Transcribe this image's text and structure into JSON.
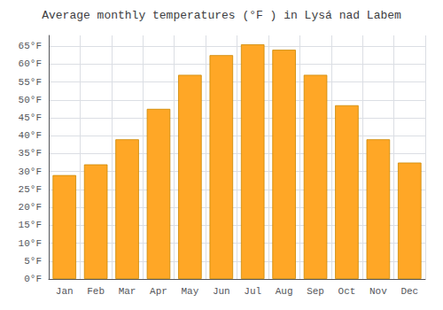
{
  "chart_data": {
    "type": "bar",
    "title": "Average monthly temperatures (°F ) in Lysá nad Labem",
    "categories": [
      "Jan",
      "Feb",
      "Mar",
      "Apr",
      "May",
      "Jun",
      "Jul",
      "Aug",
      "Sep",
      "Oct",
      "Nov",
      "Dec"
    ],
    "values": [
      29,
      32,
      39,
      47.5,
      57,
      62.5,
      65.5,
      64,
      57,
      48.5,
      39,
      32.5
    ],
    "color": "#FFA726",
    "ylim": [
      0,
      68
    ],
    "yticks": [
      {
        "value": 0,
        "label": "0°F"
      },
      {
        "value": 5,
        "label": "5°F"
      },
      {
        "value": 10,
        "label": "10°F"
      },
      {
        "value": 15,
        "label": "15°F"
      },
      {
        "value": 20,
        "label": "20°F"
      },
      {
        "value": 25,
        "label": "25°F"
      },
      {
        "value": 30,
        "label": "30°F"
      },
      {
        "value": 35,
        "label": "35°F"
      },
      {
        "value": 40,
        "label": "40°F"
      },
      {
        "value": 45,
        "label": "45°F"
      },
      {
        "value": 50,
        "label": "50°F"
      },
      {
        "value": 55,
        "label": "55°F"
      },
      {
        "value": 60,
        "label": "60°F"
      },
      {
        "value": 65,
        "label": "65°F"
      }
    ],
    "grid": true
  }
}
